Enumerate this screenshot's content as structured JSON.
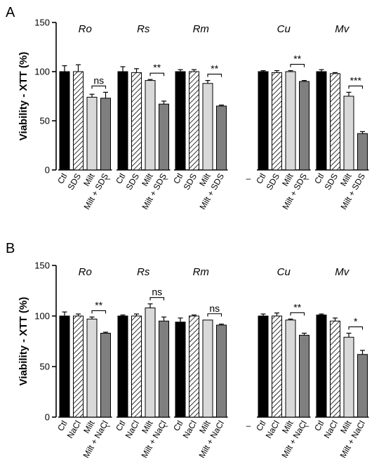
{
  "chart_data": [
    {
      "type": "bar",
      "panel": "A",
      "ylabel": "Viability - XTT (%)",
      "ylim": [
        0,
        150
      ],
      "yticks": [
        0,
        50,
        100,
        150
      ],
      "grid": false,
      "categories": [
        "Ctl",
        "SDS",
        "Milt",
        "Milt + SDS"
      ],
      "groups": [
        {
          "name": "Ro",
          "values": [
            100,
            100,
            74,
            73
          ],
          "errors": [
            6,
            7,
            3,
            6
          ],
          "significance": "ns",
          "dash": ""
        },
        {
          "name": "Rs",
          "values": [
            100,
            99,
            91,
            67
          ],
          "errors": [
            5,
            4,
            1,
            3
          ],
          "significance": "**",
          "dash": "–"
        },
        {
          "name": "Rm",
          "values": [
            100,
            100,
            88,
            65
          ],
          "errors": [
            2,
            2,
            3,
            1
          ],
          "significance": "**",
          "dash": "–"
        },
        {
          "name": "Cu",
          "values": [
            100,
            99,
            100,
            90
          ],
          "errors": [
            1,
            2,
            1,
            1
          ],
          "significance": "**",
          "dash": "–"
        },
        {
          "name": "Mv",
          "values": [
            100,
            98,
            75,
            37
          ],
          "errors": [
            2,
            1,
            4,
            2
          ],
          "significance": "***",
          "dash": "–"
        }
      ]
    },
    {
      "type": "bar",
      "panel": "B",
      "ylabel": "Viability - XTT (%)",
      "ylim": [
        0,
        150
      ],
      "yticks": [
        0,
        50,
        100,
        150
      ],
      "grid": false,
      "categories": [
        "Ctl",
        "NaCl",
        "Milt",
        "Milt + NaCl"
      ],
      "groups": [
        {
          "name": "Ro",
          "values": [
            100,
            100,
            97,
            83
          ],
          "errors": [
            4,
            2,
            2,
            1
          ],
          "significance": "**",
          "dash": ""
        },
        {
          "name": "Rs",
          "values": [
            100,
            100,
            108,
            95
          ],
          "errors": [
            1,
            2,
            4,
            4
          ],
          "significance": "ns",
          "dash": "–"
        },
        {
          "name": "Rm",
          "values": [
            94,
            100,
            96,
            91
          ],
          "errors": [
            4,
            1,
            0,
            1
          ],
          "significance": "ns",
          "dash": "–"
        },
        {
          "name": "Cu",
          "values": [
            100,
            100,
            96,
            81
          ],
          "errors": [
            2,
            3,
            1,
            2
          ],
          "significance": "**",
          "dash": "–"
        },
        {
          "name": "Mv",
          "values": [
            101,
            95,
            79,
            62
          ],
          "errors": [
            1,
            3,
            4,
            4
          ],
          "significance": "*",
          "dash": "–"
        }
      ]
    }
  ],
  "colors": {
    "ctl": "#000000",
    "hatched": "#ffffff",
    "milt": "#d9d9d9",
    "combo": "#7f7f7f"
  }
}
